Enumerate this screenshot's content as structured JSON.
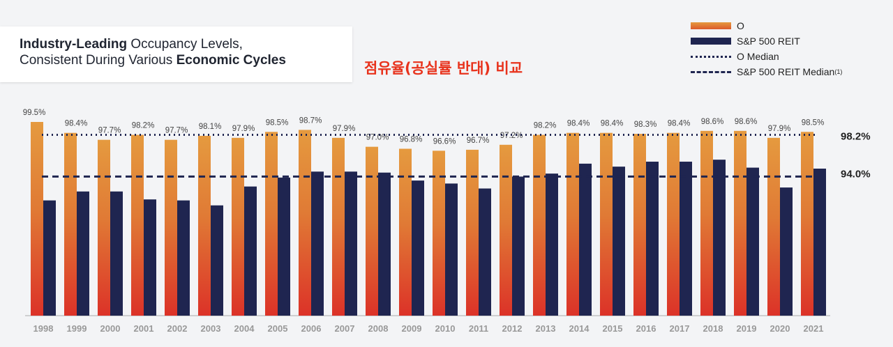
{
  "title": {
    "part1_bold": "Industry-Leading",
    "part1_rest": " Occupancy Levels,",
    "part2_rest": "Consistent During Various ",
    "part2_bold": "Economic Cycles"
  },
  "annotation_korean": "점유율(공실률 반대) 비교",
  "colors": {
    "orange_top": "#e59a3f",
    "orange_bottom": "#dc3228",
    "navy": "#1f2550",
    "median_line": "#1f2550"
  },
  "chart_data": {
    "type": "bar",
    "title": "Industry-Leading Occupancy Levels, Consistent During Various Economic Cycles",
    "xlabel": "",
    "ylabel": "",
    "ylim": [
      80,
      100
    ],
    "legend_position": "top-right",
    "categories": [
      "1998",
      "1999",
      "2000",
      "2001",
      "2002",
      "2003",
      "2004",
      "2005",
      "2006",
      "2007",
      "2008",
      "2009",
      "2010",
      "2011",
      "2012",
      "2013",
      "2014",
      "2015",
      "2016",
      "2017",
      "2018",
      "2019",
      "2020",
      "2021"
    ],
    "series": [
      {
        "name": "O",
        "values": [
          99.5,
          98.4,
          97.7,
          98.2,
          97.7,
          98.1,
          97.9,
          98.5,
          98.7,
          97.9,
          97.0,
          96.8,
          96.6,
          96.7,
          97.2,
          98.2,
          98.4,
          98.4,
          98.3,
          98.4,
          98.6,
          98.6,
          97.9,
          98.5
        ],
        "labels": [
          "99.5%",
          "98.4%",
          "97.7%",
          "98.2%",
          "97.7%",
          "98.1%",
          "97.9%",
          "98.5%",
          "98.7%",
          "97.9%",
          "97.0%",
          "96.8%",
          "96.6%",
          "96.7%",
          "97.2%",
          "98.2%",
          "98.4%",
          "98.4%",
          "98.3%",
          "98.4%",
          "98.6%",
          "98.6%",
          "97.9%",
          "98.5%"
        ]
      },
      {
        "name": "S&P 500 REIT",
        "values": [
          91.6,
          92.5,
          92.5,
          91.7,
          91.6,
          91.1,
          93.0,
          93.9,
          94.5,
          94.5,
          94.4,
          93.6,
          93.3,
          92.8,
          94.0,
          94.3,
          95.3,
          95.0,
          95.5,
          95.5,
          95.7,
          94.9,
          92.9,
          94.8
        ]
      }
    ],
    "reference_lines": [
      {
        "name": "O Median",
        "value": 98.2,
        "label": "98.2%",
        "style": "dotted"
      },
      {
        "name": "S&P 500 REIT Median",
        "value": 94.0,
        "label": "94.0%",
        "style": "dashed",
        "footnote": "(1)"
      }
    ]
  }
}
